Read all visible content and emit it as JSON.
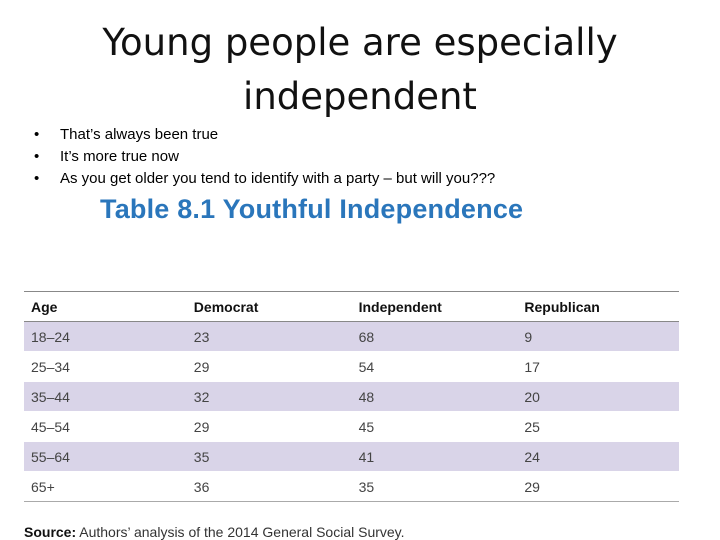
{
  "slide": {
    "title_line1": "Young people are especially",
    "title_line2": "independent",
    "bullets": [
      "That’s always been true",
      "It’s more true now",
      "As you get older you tend to identify with a party – but will you???"
    ]
  },
  "table": {
    "title": "Table 8.1 Youthful Independence",
    "headers": [
      "Age",
      "Democrat",
      "Independent",
      "Republican"
    ],
    "rows": [
      [
        "18–24",
        "23",
        "68",
        "9"
      ],
      [
        "25–34",
        "29",
        "54",
        "17"
      ],
      [
        "35–44",
        "32",
        "48",
        "20"
      ],
      [
        "45–54",
        "29",
        "45",
        "25"
      ],
      [
        "55–64",
        "35",
        "41",
        "24"
      ],
      [
        "65+",
        "36",
        "35",
        "29"
      ]
    ]
  },
  "source": {
    "label": "Source:",
    "text": " Authors’ analysis of the 2014 General Social Survey."
  }
}
